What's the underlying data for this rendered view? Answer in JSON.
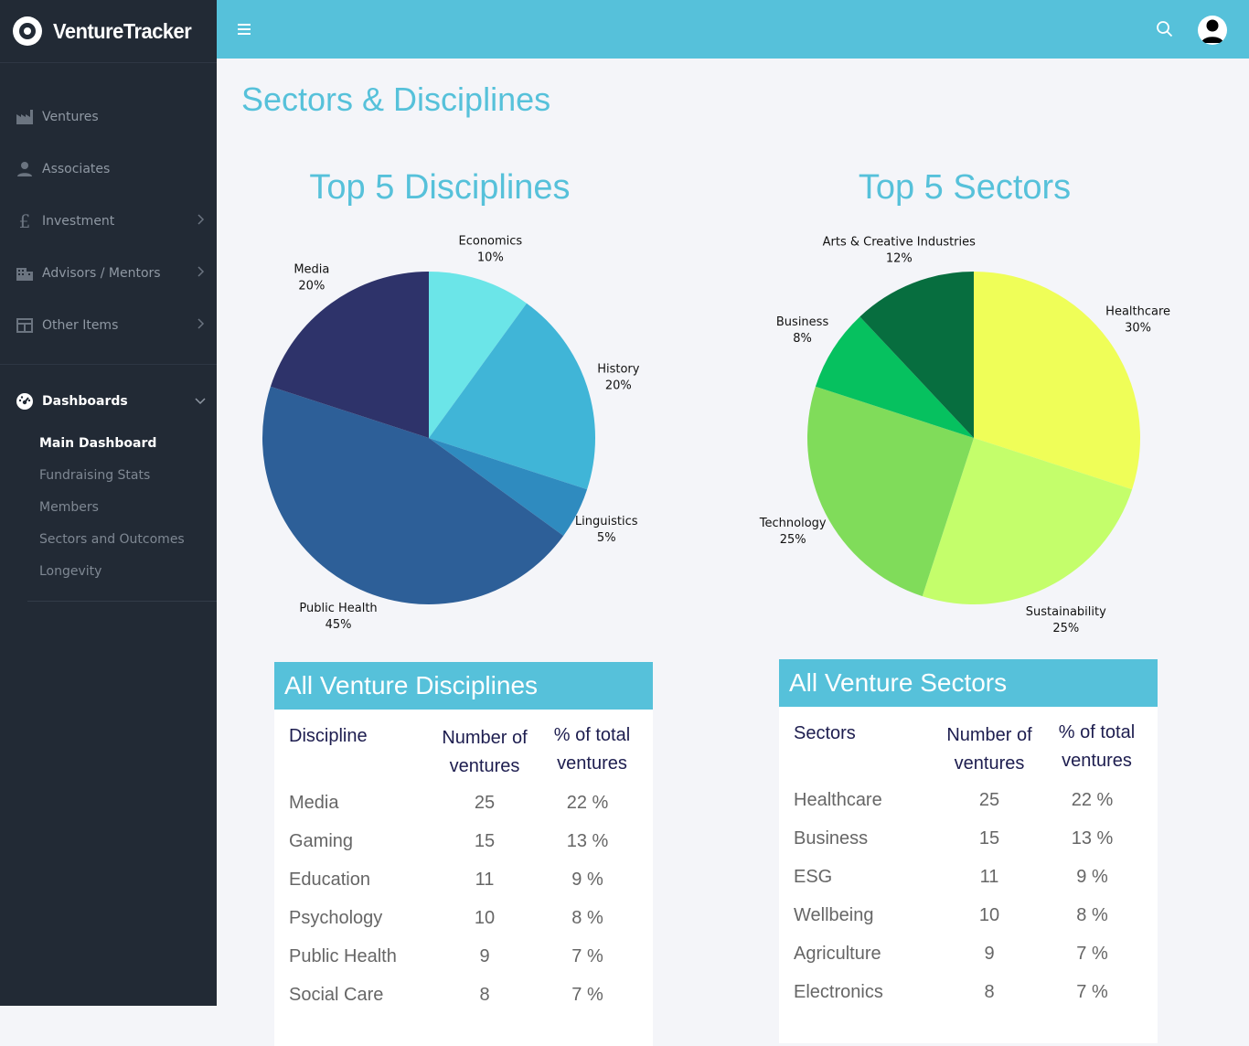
{
  "app": {
    "brand": "VentureTracker"
  },
  "sidebar": {
    "items": [
      {
        "label": "Ventures",
        "icon": "factory-icon"
      },
      {
        "label": "Associates",
        "icon": "user-icon"
      },
      {
        "label": "Investment",
        "icon": "pound-icon"
      },
      {
        "label": "Advisors / Mentors",
        "icon": "building-icon"
      },
      {
        "label": "Other Items",
        "icon": "table-icon"
      }
    ],
    "active_section": "Dashboards",
    "sub_items": [
      "Main Dashboard",
      "Fundraising Stats",
      "Members",
      "Sectors and Outcomes",
      "Longevity"
    ],
    "current_sub": "Main Dashboard"
  },
  "page": {
    "title": "Sectors & Disciplines"
  },
  "colors": {
    "accent": "#56c1da",
    "sidebar_bg": "#222a35",
    "background": "#f4f5f9"
  },
  "chart_data": [
    {
      "type": "pie",
      "title": "Top 5 Disciplines",
      "categories": [
        "Economics",
        "History",
        "Linguistics",
        "Public Health",
        "Media"
      ],
      "values": [
        10,
        20,
        5,
        45,
        20
      ],
      "percent_labels": [
        "10%",
        "20%",
        "5%",
        "45%",
        "20%"
      ],
      "colors": [
        "#6be5e8",
        "#40b5d7",
        "#2f8bbf",
        "#2d5f98",
        "#2e336a"
      ]
    },
    {
      "type": "pie",
      "title": "Top 5 Sectors",
      "categories": [
        "Healthcare",
        "Sustainability",
        "Technology",
        "Business",
        "Arts & Creative Industries"
      ],
      "values": [
        30,
        25,
        25,
        8,
        12
      ],
      "percent_labels": [
        "30%",
        "25%",
        "25%",
        "8%",
        "12%"
      ],
      "colors": [
        "#effe58",
        "#c4fe6b",
        "#80dc5a",
        "#06c15f",
        "#076e3f"
      ]
    }
  ],
  "tables": {
    "disciplines": {
      "title": "All Venture Disciplines",
      "headers": {
        "name": "Discipline",
        "count_line1": "Number of",
        "count_line2": "ventures",
        "pct_line1": "% of total",
        "pct_line2": "ventures"
      },
      "rows": [
        {
          "name": "Media",
          "count": "25",
          "pct": "22 %"
        },
        {
          "name": "Gaming",
          "count": "15",
          "pct": "13 %"
        },
        {
          "name": "Education",
          "count": "11",
          "pct": "9 %"
        },
        {
          "name": "Psychology",
          "count": "10",
          "pct": "8 %"
        },
        {
          "name": "Public Health",
          "count": "9",
          "pct": "7 %"
        },
        {
          "name": "Social Care",
          "count": "8",
          "pct": "7 %"
        }
      ]
    },
    "sectors": {
      "title": "All Venture Sectors",
      "headers": {
        "name": "Sectors",
        "count_line1": "Number of",
        "count_line2": "ventures",
        "pct_line1": "% of total",
        "pct_line2": "ventures"
      },
      "rows": [
        {
          "name": "Healthcare",
          "count": "25",
          "pct": "22 %"
        },
        {
          "name": "Business",
          "count": "15",
          "pct": "13 %"
        },
        {
          "name": "ESG",
          "count": "11",
          "pct": "9 %"
        },
        {
          "name": "Wellbeing",
          "count": "10",
          "pct": "8 %"
        },
        {
          "name": "Agriculture",
          "count": "9",
          "pct": "7 %"
        },
        {
          "name": "Electronics",
          "count": "8",
          "pct": "7 %"
        }
      ]
    }
  }
}
